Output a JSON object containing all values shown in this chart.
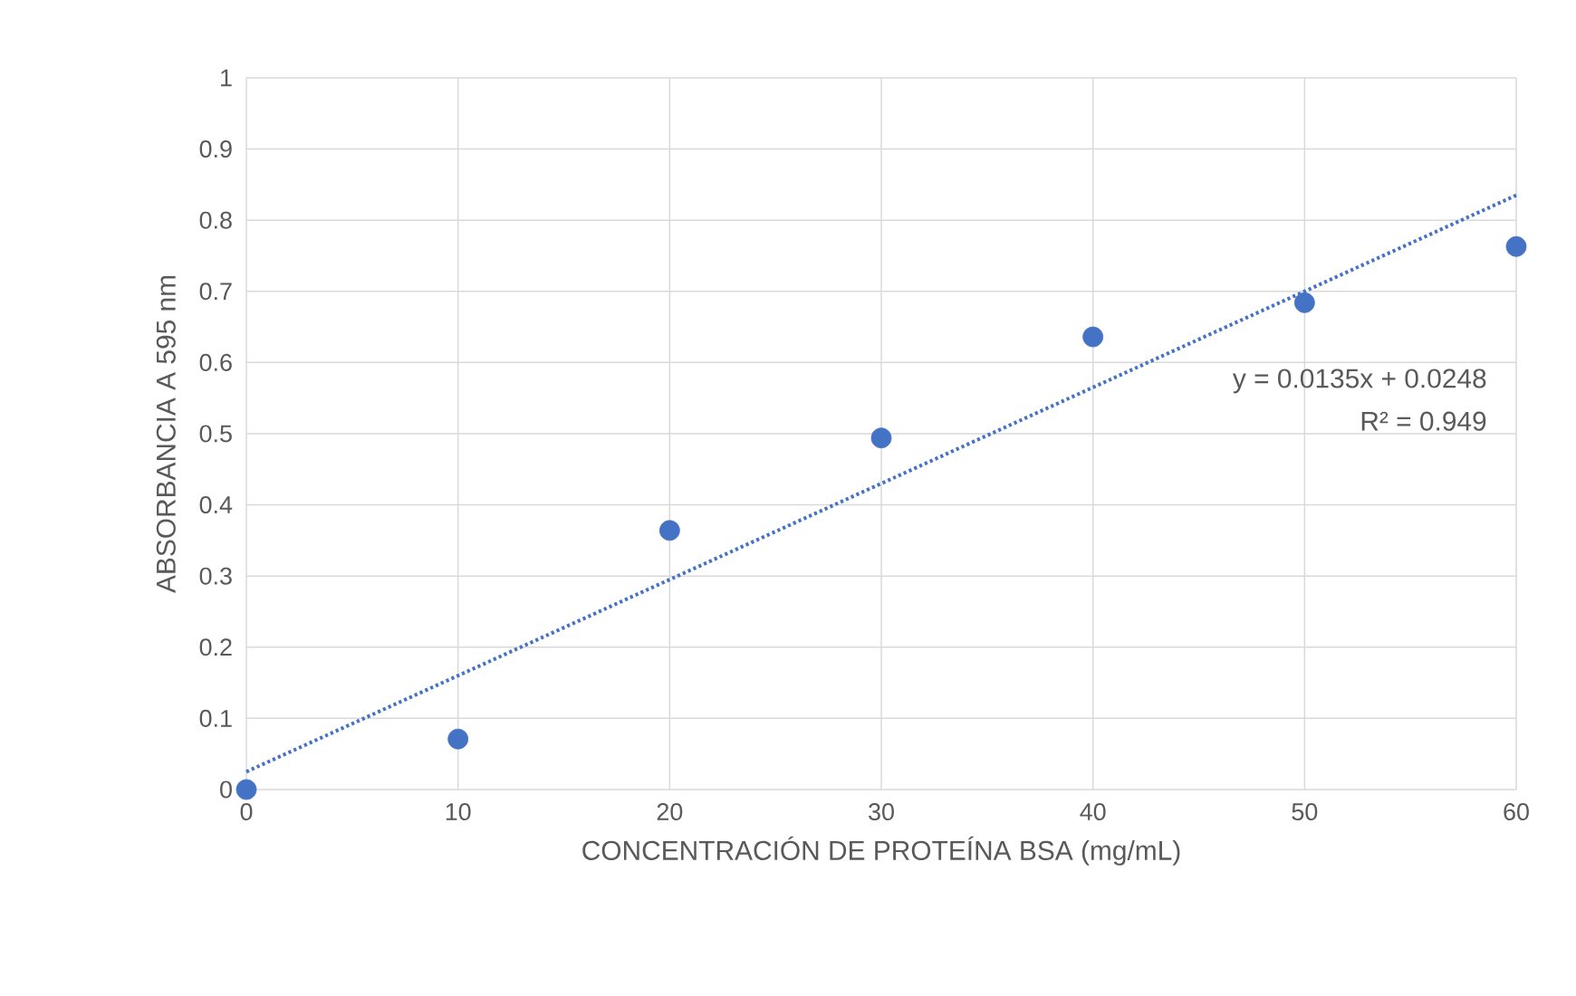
{
  "chart_data": {
    "type": "scatter",
    "xlabel": "CONCENTRACIÓN DE PROTEÍNA BSA (mg/mL)",
    "ylabel": "ABSORBANCIA A 595 nm",
    "xlim": [
      0,
      60
    ],
    "xticks": [
      0,
      10,
      20,
      30,
      40,
      50,
      60
    ],
    "ylim": [
      0,
      1
    ],
    "yticks": [
      0,
      0.1,
      0.2,
      0.3,
      0.4,
      0.5,
      0.6,
      0.7,
      0.8,
      0.9,
      1
    ],
    "grid": true,
    "series": [
      {
        "type": "scatter",
        "color": "#4472c4",
        "marker": "circle",
        "x": [
          0,
          10,
          20,
          30,
          40,
          50,
          60
        ],
        "values": [
          0,
          0.071,
          0.364,
          0.494,
          0.636,
          0.684,
          0.763
        ]
      },
      {
        "type": "line",
        "color": "#4472c4",
        "line_style": "dotted",
        "marker": "none",
        "x": [
          0,
          60
        ],
        "values": [
          0.025,
          0.835
        ]
      }
    ],
    "annotations": [
      "y = 0.0135x + 0.0248",
      "R² = 0.949"
    ]
  }
}
